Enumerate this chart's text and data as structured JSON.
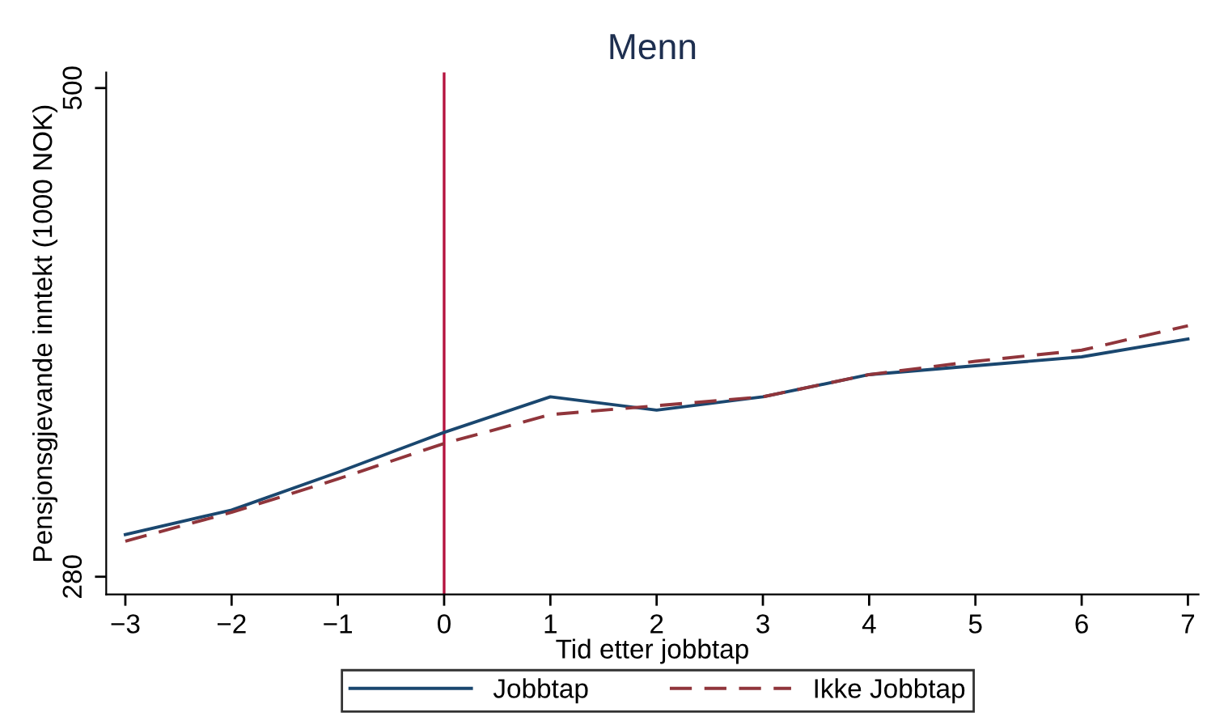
{
  "chart_data": {
    "type": "line",
    "title": "Menn",
    "xlabel": "Tid etter jobbtap",
    "ylabel": "Pensjonsgjevande inntekt (1000 NOK)",
    "x": [
      -3,
      -2,
      -1,
      0,
      1,
      2,
      3,
      4,
      5,
      6,
      7
    ],
    "series": [
      {
        "name": "Jobbtap",
        "color": "#1a476f",
        "line_style": "solid",
        "values": [
          299,
          310,
          327,
          345,
          361,
          355,
          361,
          371,
          375,
          379,
          387
        ]
      },
      {
        "name": "Ikke Jobbtap",
        "color": "#90353b",
        "line_style": "dashed",
        "values": [
          296,
          309,
          324,
          340,
          353,
          357,
          361,
          371,
          377,
          382,
          393
        ]
      }
    ],
    "xlim": [
      -3.18,
      7.1
    ],
    "ylim": [
      272,
      507
    ],
    "xticks": [
      {
        "value": -3,
        "label": "−3"
      },
      {
        "value": -2,
        "label": "−2"
      },
      {
        "value": -1,
        "label": "−1"
      },
      0,
      1,
      2,
      3,
      4,
      5,
      6,
      7
    ],
    "yticks": [
      280,
      500
    ],
    "ref_lines": [
      {
        "axis": "x",
        "value": 0,
        "color": "#b5123e",
        "line_style": "solid"
      }
    ],
    "grid": false,
    "legend": "bottom",
    "marker": "none"
  }
}
